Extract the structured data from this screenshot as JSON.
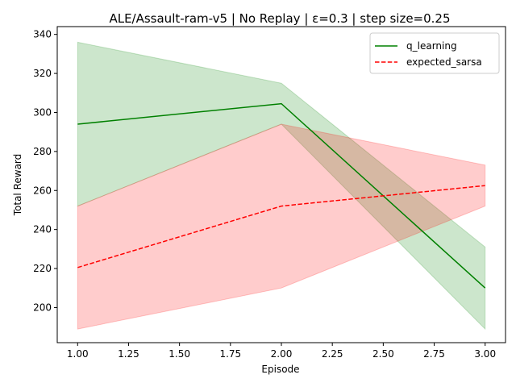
{
  "chart_data": {
    "type": "line",
    "title": "ALE/Assault-ram-v5 | No Replay | ε=0.3 | step size=0.25",
    "xlabel": "Episode",
    "ylabel": "Total Reward",
    "xlim": [
      0.9,
      3.1
    ],
    "ylim": [
      182,
      344
    ],
    "xticks": [
      "1.00",
      "1.25",
      "1.50",
      "1.75",
      "2.00",
      "2.25",
      "2.50",
      "2.75",
      "3.00"
    ],
    "yticks": [
      "200",
      "220",
      "240",
      "260",
      "280",
      "300",
      "320",
      "340"
    ],
    "grid": false,
    "legend_position": "top-right",
    "x": [
      1,
      2,
      3
    ],
    "series": [
      {
        "name": "q_learning",
        "values": [
          294,
          304.5,
          210
        ],
        "lower": [
          252,
          294,
          189
        ],
        "upper": [
          336,
          315,
          231
        ],
        "color": "#008000",
        "linestyle": "solid"
      },
      {
        "name": "expected_sarsa",
        "values": [
          220.5,
          252,
          262.5
        ],
        "lower": [
          189,
          210,
          252
        ],
        "upper": [
          252,
          294,
          273
        ],
        "color": "#ff0000",
        "linestyle": "dashed"
      }
    ]
  }
}
